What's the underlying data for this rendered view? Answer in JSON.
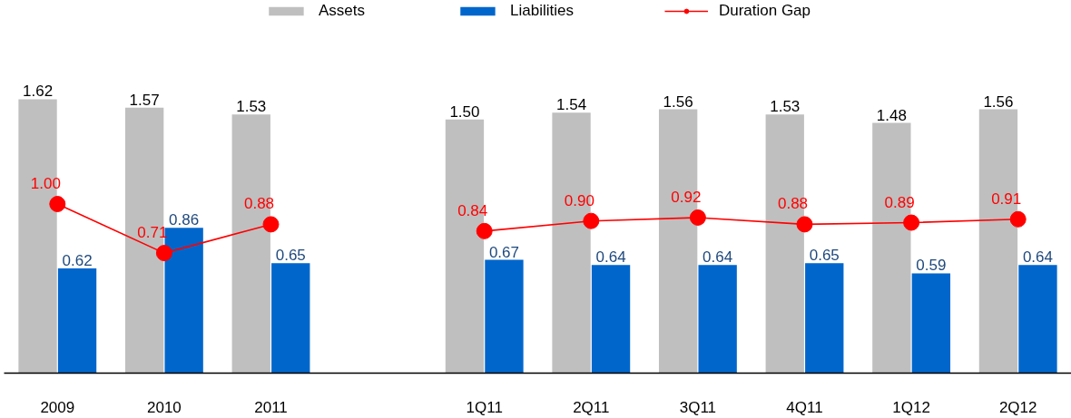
{
  "chart_data": {
    "type": "bar",
    "categories": [
      "2009",
      "2010",
      "2011",
      null,
      "1Q11",
      "2Q11",
      "3Q11",
      "4Q11",
      "1Q12",
      "2Q12"
    ],
    "series": [
      {
        "name": "Assets",
        "color": "#bfbfbf",
        "values": [
          1.62,
          1.57,
          1.53,
          null,
          1.5,
          1.54,
          1.56,
          1.53,
          1.48,
          1.56
        ],
        "value_labels": [
          "1.62",
          "1.57",
          "1.53",
          null,
          "1.50",
          "1.54",
          "1.56",
          "1.53",
          "1.48",
          "1.56"
        ]
      },
      {
        "name": "Liabilities",
        "color": "#0066cc",
        "values": [
          0.62,
          0.86,
          0.65,
          null,
          0.67,
          0.64,
          0.64,
          0.65,
          0.59,
          0.64
        ],
        "value_labels": [
          "0.62",
          "0.86",
          "0.65",
          null,
          "0.67",
          "0.64",
          "0.64",
          "0.65",
          "0.59",
          "0.64"
        ]
      },
      {
        "name": "Duration Gap",
        "type": "line",
        "color": "#ff0000",
        "values": [
          1.0,
          0.71,
          0.88,
          null,
          0.84,
          0.9,
          0.92,
          0.88,
          0.89,
          0.91
        ],
        "value_labels": [
          "1.00",
          "0.71",
          "0.88",
          null,
          "0.84",
          "0.90",
          "0.92",
          "0.88",
          "0.89",
          "0.91"
        ]
      }
    ],
    "legend": "top",
    "grid": false,
    "tick_labels": "x",
    "marker": "circle",
    "line_style": "solid"
  }
}
